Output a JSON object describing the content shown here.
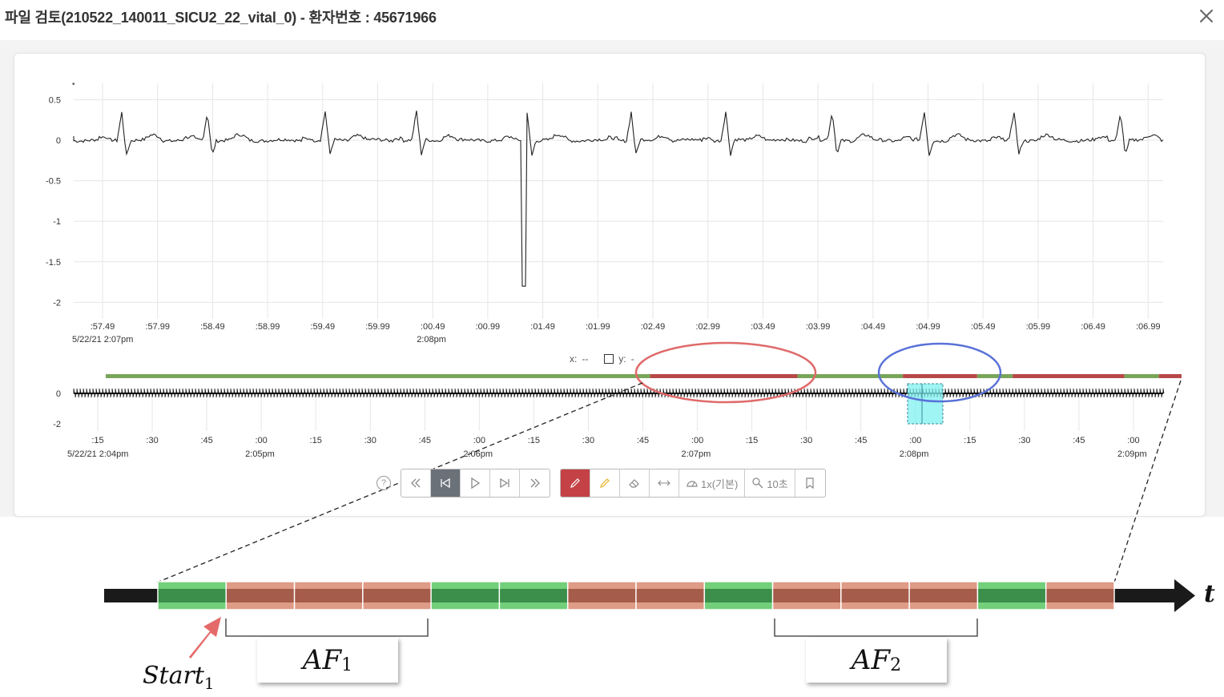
{
  "window": {
    "title": "파일 검토(210522_140011_SICU2_22_vital_0) - 환자번호 : 45671966",
    "close_icon": "close-icon"
  },
  "ecg_chart": {
    "y_ticks": [
      "0.5",
      "0",
      "-0.5",
      "-1",
      "-1.5",
      "-2"
    ],
    "x_ticks": [
      ":57.49",
      ":57.99",
      ":58.49",
      ":58.99",
      ":59.49",
      ":59.99",
      ":00.49",
      ":00.99",
      ":01.49",
      ":01.99",
      ":02.49",
      ":02.99",
      ":03.49",
      ":03.99",
      ":04.49",
      ":04.99",
      ":05.49",
      ":05.99",
      ":06.49",
      ":06.99"
    ],
    "x_sub_labels": [
      {
        "text": "5/22/21 2:07pm",
        "tick_index": 0
      },
      {
        "text": "2:08pm",
        "tick_index": 6
      }
    ],
    "ylim": [
      -2,
      0.5
    ]
  },
  "readout": {
    "x_label": "x:",
    "x_value": "--",
    "y_label": "y:",
    "y_value": "-"
  },
  "overview": {
    "y_ticks": [
      "0",
      "-2"
    ],
    "x_ticks": [
      ":15",
      ":30",
      ":45",
      ":00",
      ":15",
      ":30",
      ":45",
      ":00",
      ":15",
      ":30",
      ":45",
      ":00",
      ":15",
      ":30",
      ":45",
      ":00",
      ":15",
      ":30",
      ":45",
      ":00"
    ],
    "x_sub_labels": [
      {
        "text": "5/22/21 2:04pm",
        "tick_index": 0
      },
      {
        "text": "2:05pm",
        "tick_index": 3
      },
      {
        "text": "2:06pm",
        "tick_index": 7
      },
      {
        "text": "2:07pm",
        "tick_index": 11
      },
      {
        "text": "2:08pm",
        "tick_index": 15
      },
      {
        "text": "2:09pm",
        "tick_index": 19
      }
    ],
    "label_bar": [
      {
        "label": "normal",
        "start": 0.0,
        "end": 0.506
      },
      {
        "label": "af",
        "start": 0.506,
        "end": 0.643
      },
      {
        "label": "normal",
        "start": 0.643,
        "end": 0.741
      },
      {
        "label": "af",
        "start": 0.741,
        "end": 0.81
      },
      {
        "label": "normal",
        "start": 0.81,
        "end": 0.843
      },
      {
        "label": "af",
        "start": 0.843,
        "end": 0.947
      },
      {
        "label": "normal",
        "start": 0.947,
        "end": 0.979
      },
      {
        "label": "af",
        "start": 0.979,
        "end": 1.0
      }
    ]
  },
  "toolbar": {
    "help_icon_text": "?",
    "speed_label": "1x(기본)",
    "zoom_label": "10초",
    "buttons": [
      "rewind-fast-icon",
      "skip-back-icon",
      "play-icon",
      "skip-forward-icon",
      "forward-fast-icon",
      "pen-icon",
      "highlighter-icon",
      "eraser-icon",
      "stretch-icon",
      "speed-icon",
      "zoom-icon",
      "bookmark-icon"
    ]
  },
  "timeline_diagram": {
    "segments": [
      "normal",
      "af",
      "af",
      "af",
      "normal",
      "normal",
      "af",
      "af",
      "normal",
      "af",
      "af",
      "af",
      "normal",
      "af"
    ],
    "af1_label": "AF",
    "af1_sub": "1",
    "af2_label": "AF",
    "af2_sub": "2",
    "start_label": "Start",
    "start_sub": "1",
    "t_label": "t"
  },
  "colors": {
    "normal": "#78a55a",
    "af": "#b84848",
    "normal_block_light": "#72cf7a",
    "normal_block_dark": "#3b8f4a",
    "af_block_light": "#de9b86",
    "af_block_dark": "#a55c4a",
    "red_circle": "#e06a6a",
    "blue_circle": "#5a72d8",
    "selection": "#7ff0f0"
  }
}
